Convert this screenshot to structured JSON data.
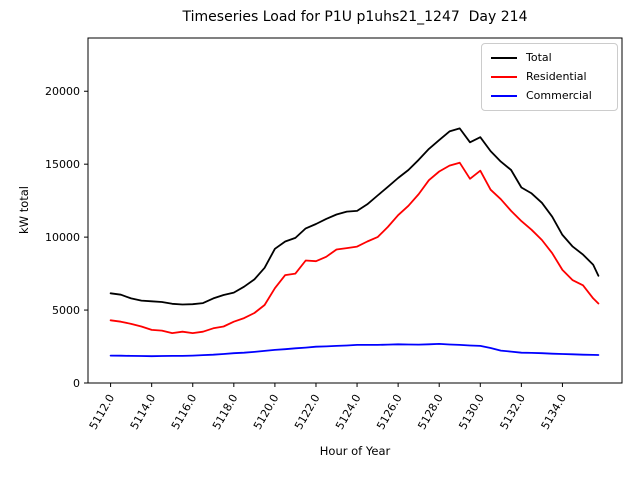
{
  "chart_data": {
    "type": "line",
    "title": "Timeseries Load for P1U p1uhs21_1247  Day 214",
    "xlabel": "Hour of Year",
    "ylabel": "kW total",
    "xlim": [
      5110.9,
      5136.9
    ],
    "ylim": [
      0,
      23650
    ],
    "xticks": [
      5112,
      5114,
      5116,
      5118,
      5120,
      5122,
      5124,
      5126,
      5128,
      5130,
      5132,
      5134
    ],
    "xtick_labels": [
      "5112.0",
      "5114.0",
      "5116.0",
      "5118.0",
      "5120.0",
      "5122.0",
      "5124.0",
      "5126.0",
      "5128.0",
      "5130.0",
      "5132.0",
      "5134.0"
    ],
    "xtick_rotation_deg": 60,
    "yticks": [
      0,
      5000,
      10000,
      15000,
      20000
    ],
    "ytick_labels": [
      "0",
      "5000",
      "10000",
      "15000",
      "20000"
    ],
    "grid": false,
    "legend_position": "upper right",
    "x": [
      5112.0,
      5112.5,
      5113.0,
      5113.5,
      5114.0,
      5114.5,
      5115.0,
      5115.5,
      5116.0,
      5116.5,
      5117.0,
      5117.5,
      5118.0,
      5118.5,
      5119.0,
      5119.5,
      5120.0,
      5120.5,
      5121.0,
      5121.5,
      5122.0,
      5122.5,
      5123.0,
      5123.5,
      5124.0,
      5124.5,
      5125.0,
      5125.5,
      5126.0,
      5126.5,
      5127.0,
      5127.5,
      5128.0,
      5128.5,
      5129.0,
      5129.5,
      5130.0,
      5130.5,
      5131.0,
      5131.5,
      5132.0,
      5132.5,
      5133.0,
      5133.5,
      5134.0,
      5134.5,
      5135.0,
      5135.5,
      5135.75
    ],
    "series": [
      {
        "name": "Total",
        "color": "#000000",
        "values": [
          6150,
          6050,
          5800,
          5650,
          5600,
          5550,
          5430,
          5380,
          5400,
          5480,
          5800,
          6030,
          6200,
          6600,
          7100,
          7900,
          9200,
          9700,
          9950,
          10600,
          10900,
          11250,
          11550,
          11750,
          11800,
          12250,
          12850,
          13450,
          14050,
          14600,
          15300,
          16050,
          16650,
          17250,
          17450,
          16500,
          16850,
          15900,
          15180,
          14600,
          13400,
          13000,
          12350,
          11400,
          10150,
          9350,
          8800,
          8100,
          7350
        ]
      },
      {
        "name": "Residential",
        "color": "#ff0000",
        "values": [
          4300,
          4200,
          4050,
          3870,
          3640,
          3590,
          3420,
          3520,
          3420,
          3520,
          3750,
          3870,
          4200,
          4450,
          4800,
          5350,
          6500,
          7400,
          7500,
          8400,
          8350,
          8650,
          9150,
          9250,
          9350,
          9700,
          10000,
          10700,
          11500,
          12150,
          12950,
          13900,
          14500,
          14900,
          15100,
          14000,
          14550,
          13250,
          12600,
          11800,
          11100,
          10500,
          9800,
          8900,
          7750,
          7050,
          6700,
          5800,
          5450
        ]
      },
      {
        "name": "Commercial",
        "color": "#0000ff",
        "values": [
          1880,
          1870,
          1860,
          1850,
          1840,
          1850,
          1860,
          1860,
          1880,
          1910,
          1940,
          1990,
          2040,
          2080,
          2130,
          2200,
          2270,
          2320,
          2380,
          2430,
          2490,
          2510,
          2540,
          2570,
          2610,
          2610,
          2610,
          2630,
          2650,
          2640,
          2630,
          2650,
          2680,
          2640,
          2610,
          2570,
          2540,
          2400,
          2220,
          2150,
          2080,
          2060,
          2040,
          2010,
          1990,
          1970,
          1940,
          1925,
          1920
        ]
      }
    ]
  }
}
